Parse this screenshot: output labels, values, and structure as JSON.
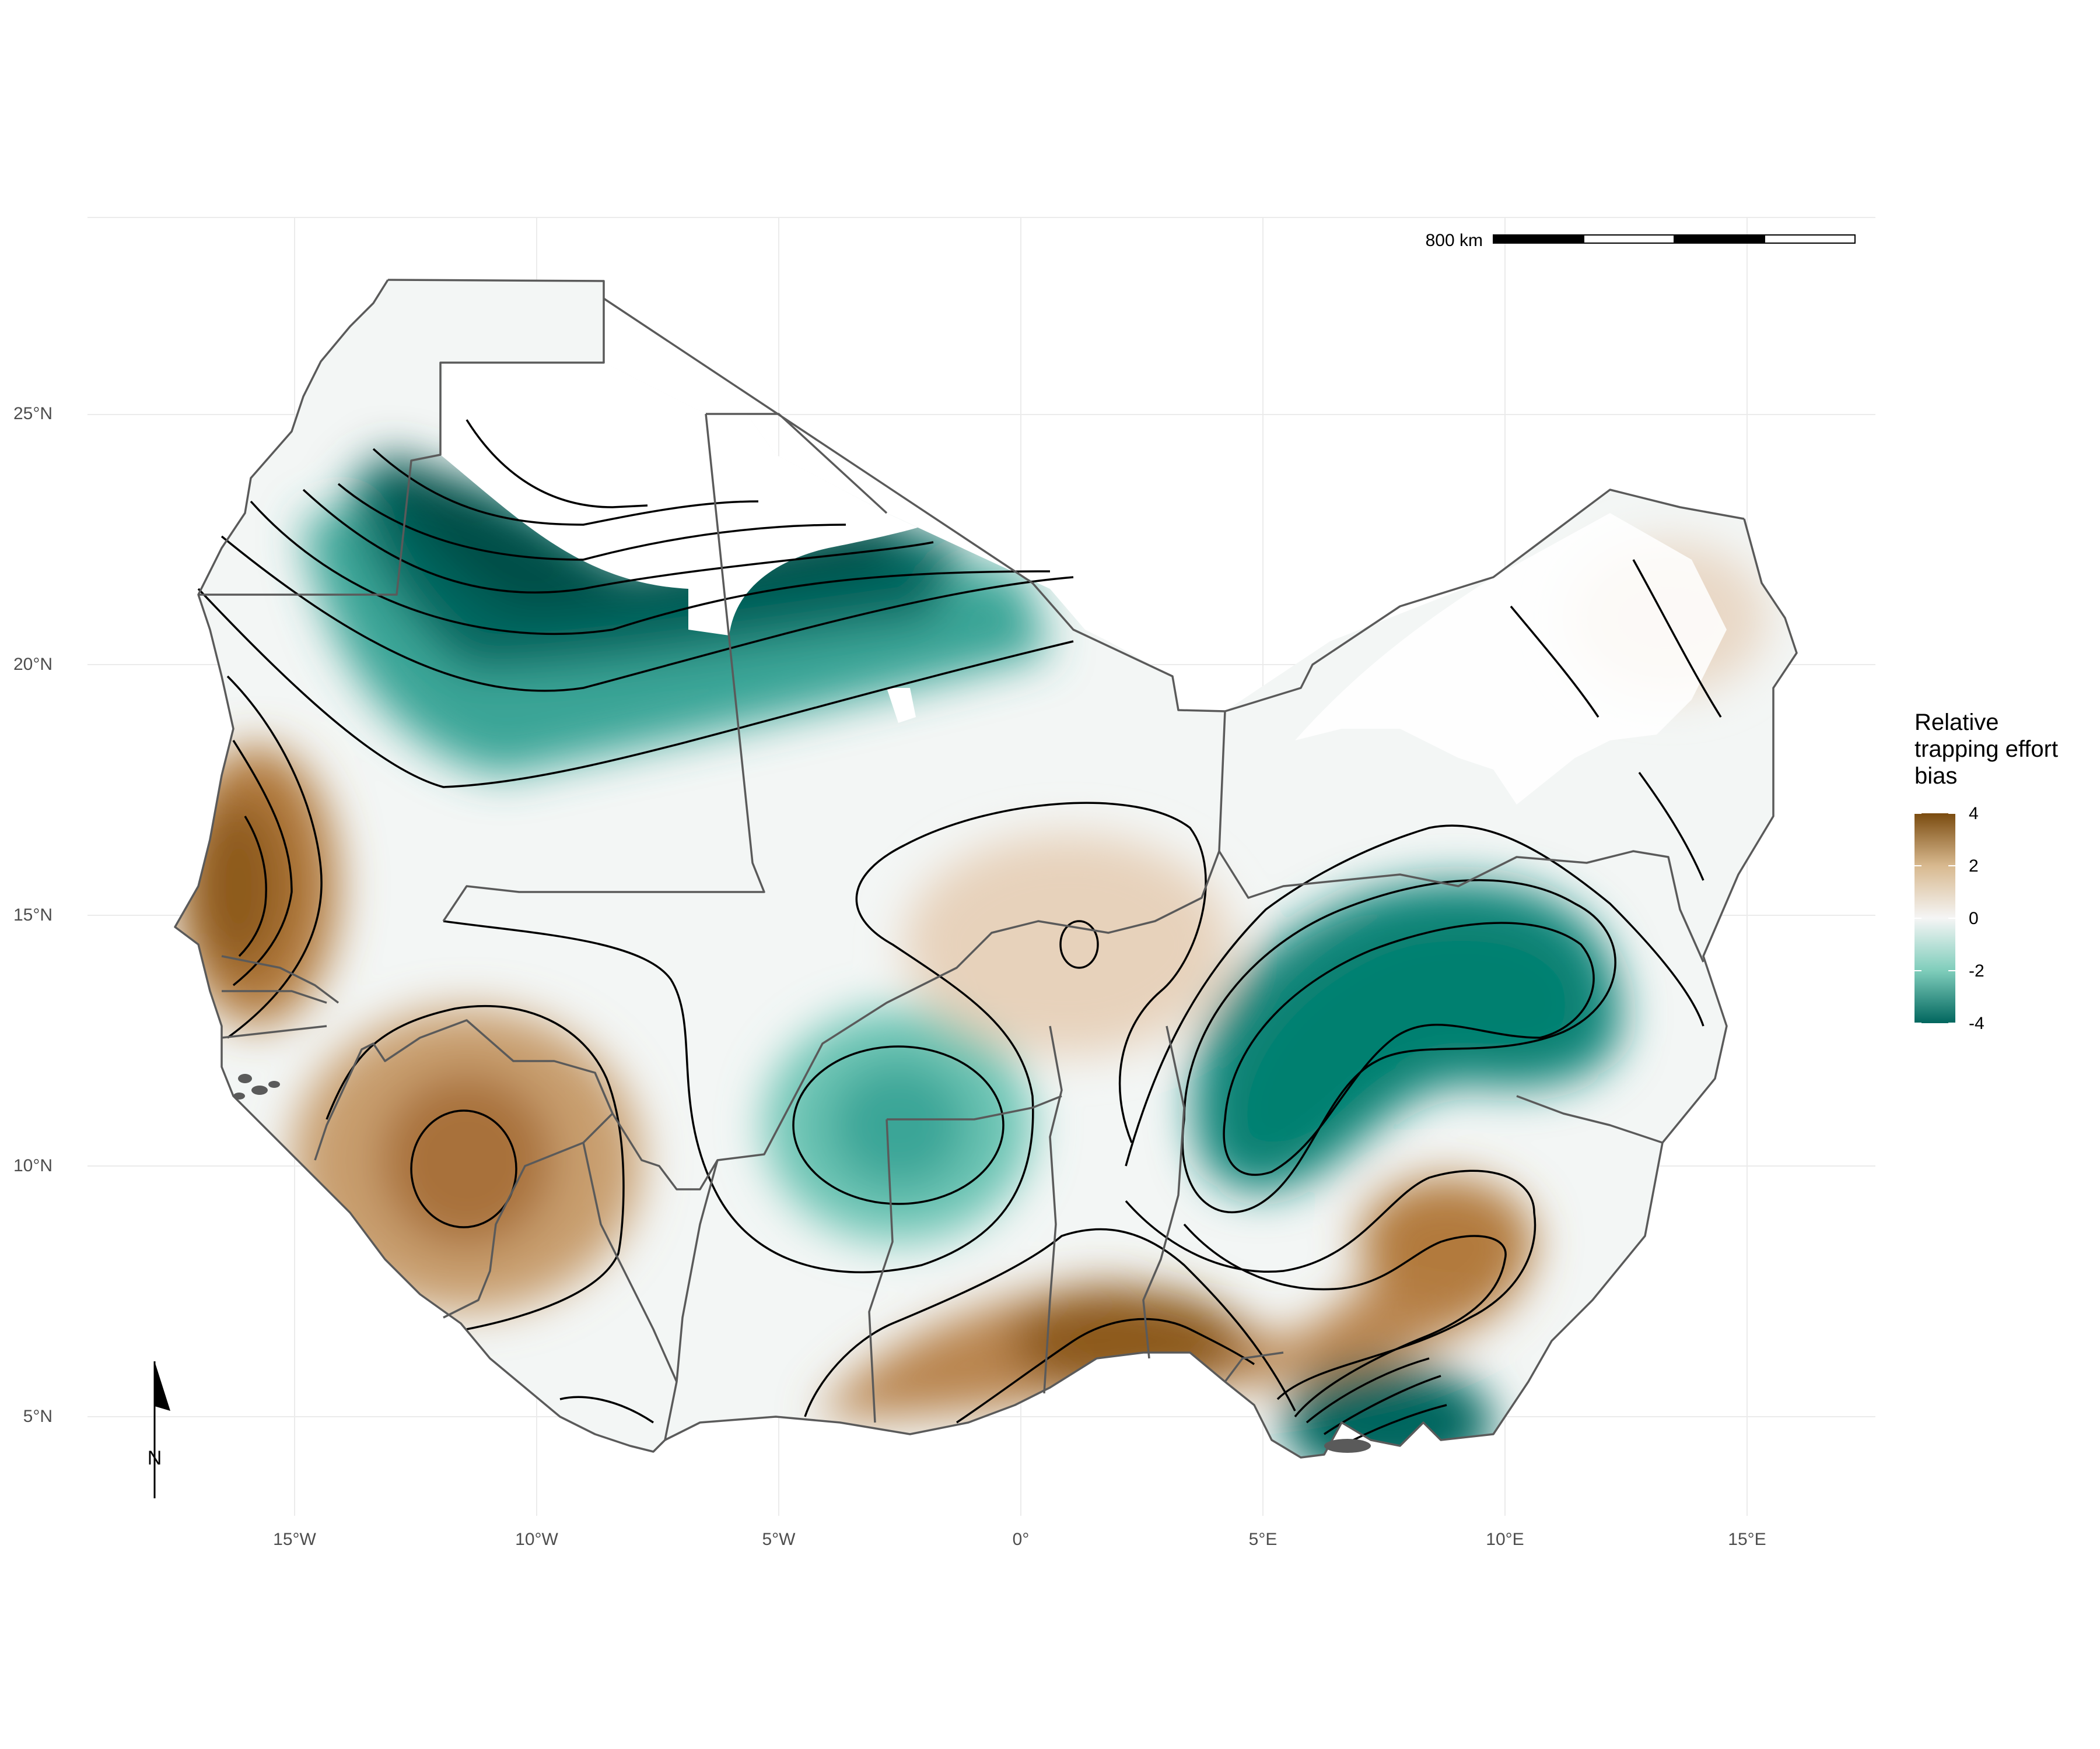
{
  "map": {
    "legend": {
      "title_lines": [
        "Relative",
        "trapping effort",
        "bias"
      ],
      "ticks": [
        "4",
        "2",
        "0",
        "-2",
        "-4"
      ],
      "range": [
        -4,
        4
      ],
      "colors": {
        "high": "#7a4b0f",
        "mid_high": "#d8b98f",
        "zero": "#f5f5f5",
        "mid_low": "#7fcdbb",
        "low": "#01665e"
      }
    },
    "axes": {
      "x_labels": [
        "15°W",
        "10°W",
        "5°W",
        "0°",
        "5°E",
        "10°E",
        "15°E"
      ],
      "y_labels": [
        "25°N",
        "20°N",
        "15°N",
        "10°N",
        "5°N"
      ]
    },
    "scale_bar": {
      "label": "800 km"
    },
    "north_arrow": {
      "label": "N"
    },
    "palette": {
      "border": "#5a5a5a",
      "contour": "#000000",
      "grid": "#ebebeb"
    }
  }
}
